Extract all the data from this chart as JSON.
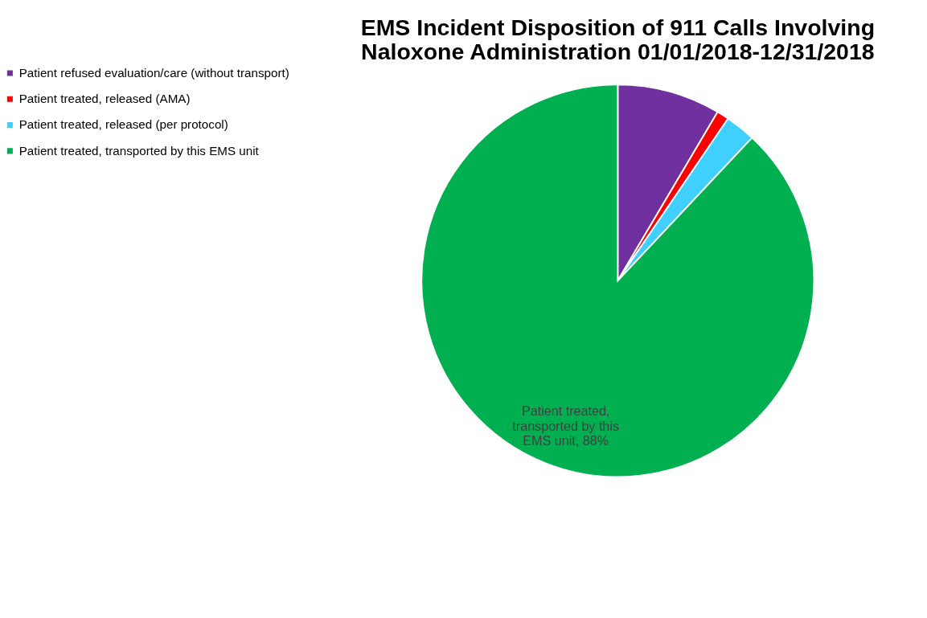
{
  "chart_data": {
    "type": "pie",
    "title": "EMS Incident Disposition of 911 Calls Involving Naloxone Administration 01/01/2018-12/31/2018",
    "categories": [
      "Patient refused evaluation/care (without transport)",
      "Patient treated, released (AMA)",
      "Patient treated, released (per protocol)",
      "Patient treated, transported by this EMS unit"
    ],
    "values": [
      8.5,
      1,
      2.5,
      88
    ],
    "colors": [
      "#7030a0",
      "#ff0000",
      "#3fd0ff",
      "#00b050"
    ],
    "value_labels": [
      null,
      null,
      null,
      "Patient treated, transported by this EMS unit, 88%"
    ],
    "legend": "left"
  }
}
